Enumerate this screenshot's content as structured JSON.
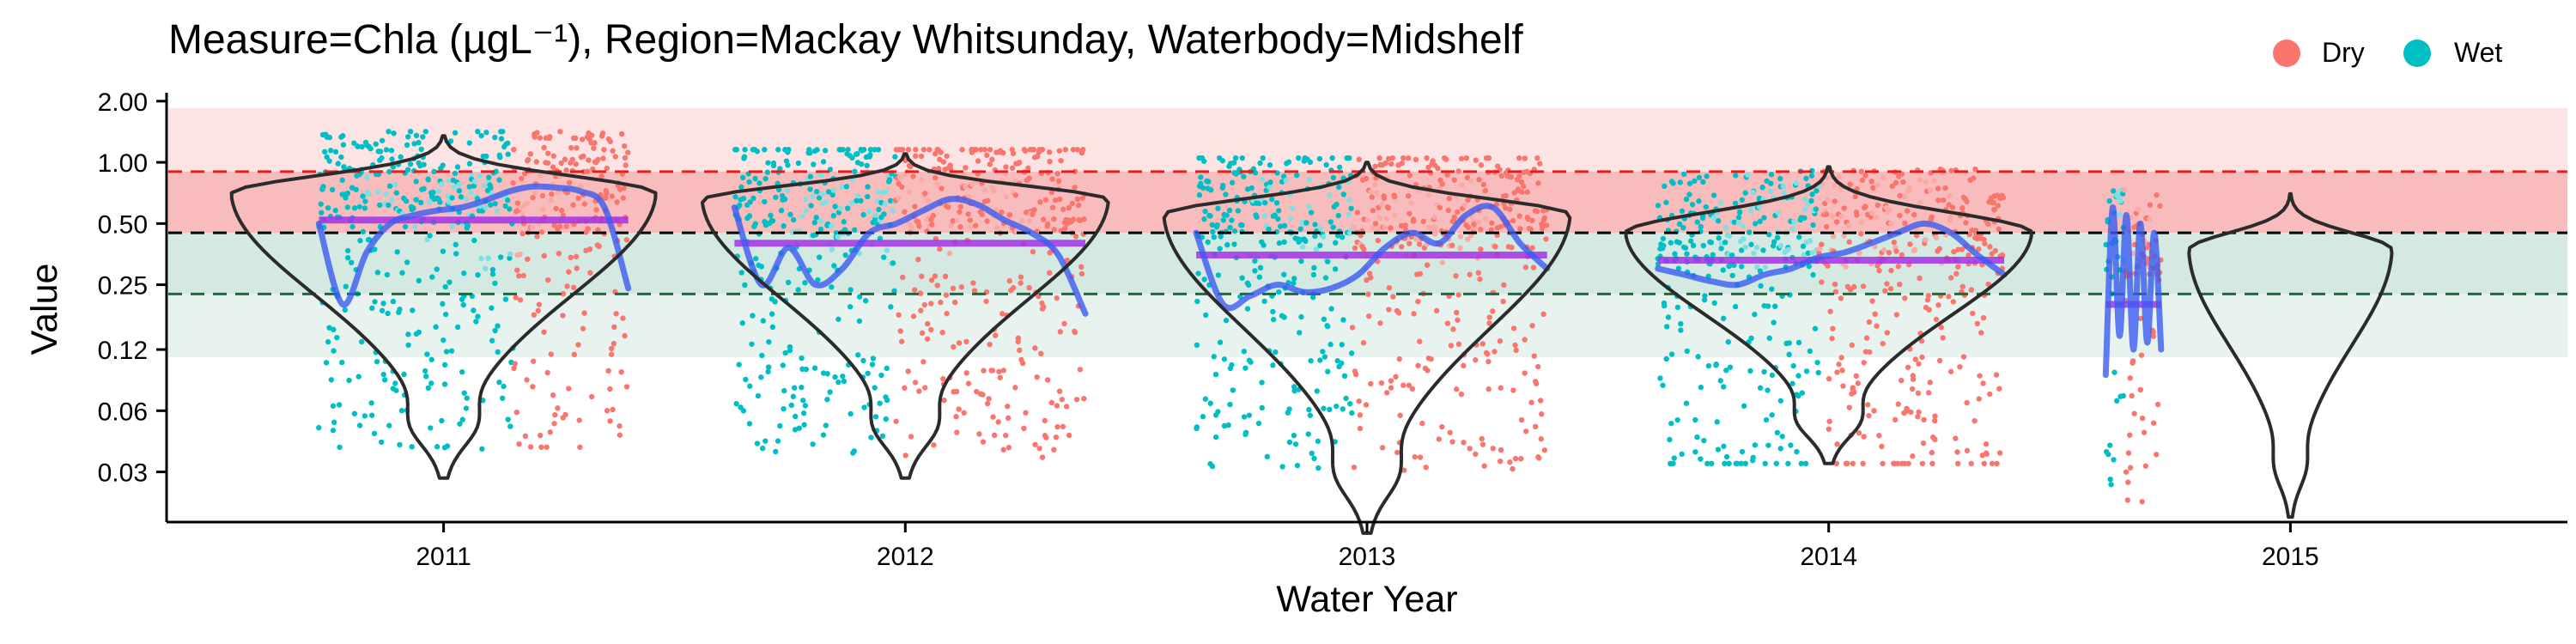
{
  "chart_data": {
    "type": "scatter",
    "title": "Measure=Chla (µgL⁻¹), Region=Mackay Whitsunday, Waterbody=Midshelf",
    "xlabel": "Water Year",
    "ylabel": "Value",
    "y_scale": "log2",
    "ylim": [
      0.017,
      2.2
    ],
    "y_ticks": [
      2.0,
      1.0,
      0.5,
      0.25,
      0.12,
      0.06,
      0.03
    ],
    "y_tick_labels": [
      "2.00",
      "1.00",
      "0.50",
      "0.25",
      "0.12",
      "0.06",
      "0.03"
    ],
    "categories": [
      "2011",
      "2012",
      "2013",
      "2014",
      "2015"
    ],
    "xlim": [
      2010.4,
      2015.6
    ],
    "grid": false,
    "legend_position": "top-right",
    "legend": [
      {
        "label": "Dry",
        "color": "#F8766D"
      },
      {
        "label": "Wet",
        "color": "#00BFC4"
      }
    ],
    "colors": {
      "dry": "#F8766D",
      "wet": "#00BFC4",
      "dry_light": "#f9aaa5",
      "wet_light": "#7fdfe2",
      "smooth": "#3b5bf0",
      "smooth_light": "#a9b6f7",
      "median": "#a332e6",
      "median_light": "#d898f0",
      "band_upper_light": "#fce4e4",
      "band_upper": "#f9bcbc",
      "band_lower": "#d3e9e1",
      "band_lower_light": "#e8f3ef",
      "line_upper": "#e21f1f",
      "line_mid": "#000000",
      "line_lower": "#1a6b3e",
      "violin": "#2b2b2b"
    },
    "bands": [
      {
        "name": "upper-light",
        "from": 0.9,
        "to": 1.85,
        "color": "#fce4e4"
      },
      {
        "name": "upper",
        "from": 0.45,
        "to": 0.9,
        "color": "#f9bcbc"
      },
      {
        "name": "lower",
        "from": 0.225,
        "to": 0.45,
        "color": "#d3e9e1"
      },
      {
        "name": "lower-light",
        "from": 0.11,
        "to": 0.225,
        "color": "#e8f3ef"
      }
    ],
    "reference_lines": [
      {
        "value": 0.9,
        "color": "#e21f1f"
      },
      {
        "value": 0.45,
        "color": "#000000"
      },
      {
        "value": 0.225,
        "color": "#1a6b3e"
      }
    ],
    "years": [
      {
        "year": "2011",
        "start": 2010.73,
        "end": 2011.4,
        "wet_end": 2011.15,
        "median": 0.52,
        "smooth": [
          0.5,
          0.2,
          0.36,
          0.5,
          0.55,
          0.58,
          0.6,
          0.65,
          0.72,
          0.76,
          0.75,
          0.72,
          0.6,
          0.24
        ],
        "violin_mode": 0.7,
        "violin_top": 1.35,
        "violin_bottom": 0.028,
        "violin_width": 0.46
      },
      {
        "year": "2012",
        "start": 2011.63,
        "end": 2012.39,
        "wet_end": 2011.98,
        "median": 0.4,
        "smooth": [
          0.6,
          0.25,
          0.38,
          0.25,
          0.3,
          0.45,
          0.5,
          0.58,
          0.66,
          0.62,
          0.52,
          0.45,
          0.35,
          0.18
        ],
        "violin_mode": 0.65,
        "violin_top": 1.1,
        "violin_bottom": 0.028,
        "violin_width": 0.44
      },
      {
        "year": "2013",
        "start": 2012.63,
        "end": 2013.39,
        "wet_end": 2012.97,
        "median": 0.35,
        "smooth": [
          0.45,
          0.2,
          0.22,
          0.25,
          0.23,
          0.24,
          0.28,
          0.38,
          0.45,
          0.4,
          0.55,
          0.6,
          0.4,
          0.3
        ],
        "violin_mode": 0.55,
        "violin_top": 1.0,
        "violin_bottom": 0.015,
        "violin_width": 0.44
      },
      {
        "year": "2014",
        "start": 2013.63,
        "end": 2014.38,
        "wet_end": 2013.98,
        "median": 0.33,
        "smooth": [
          0.3,
          0.28,
          0.26,
          0.25,
          0.28,
          0.3,
          0.34,
          0.36,
          0.4,
          0.45,
          0.5,
          0.45,
          0.35,
          0.28
        ],
        "violin_mode": 0.45,
        "violin_top": 0.95,
        "violin_bottom": 0.033,
        "violin_width": 0.44
      },
      {
        "year": "2015",
        "start": 2014.6,
        "end": 2014.72,
        "wet_end": 2014.64,
        "median": 0.2,
        "smooth": [
          0.09,
          0.6,
          0.14,
          0.55,
          0.12,
          0.5,
          0.13,
          0.45,
          0.12
        ],
        "violin_mode": 0.37,
        "violin_top": 0.7,
        "violin_bottom": 0.018,
        "violin_width": 0.22
      }
    ]
  }
}
